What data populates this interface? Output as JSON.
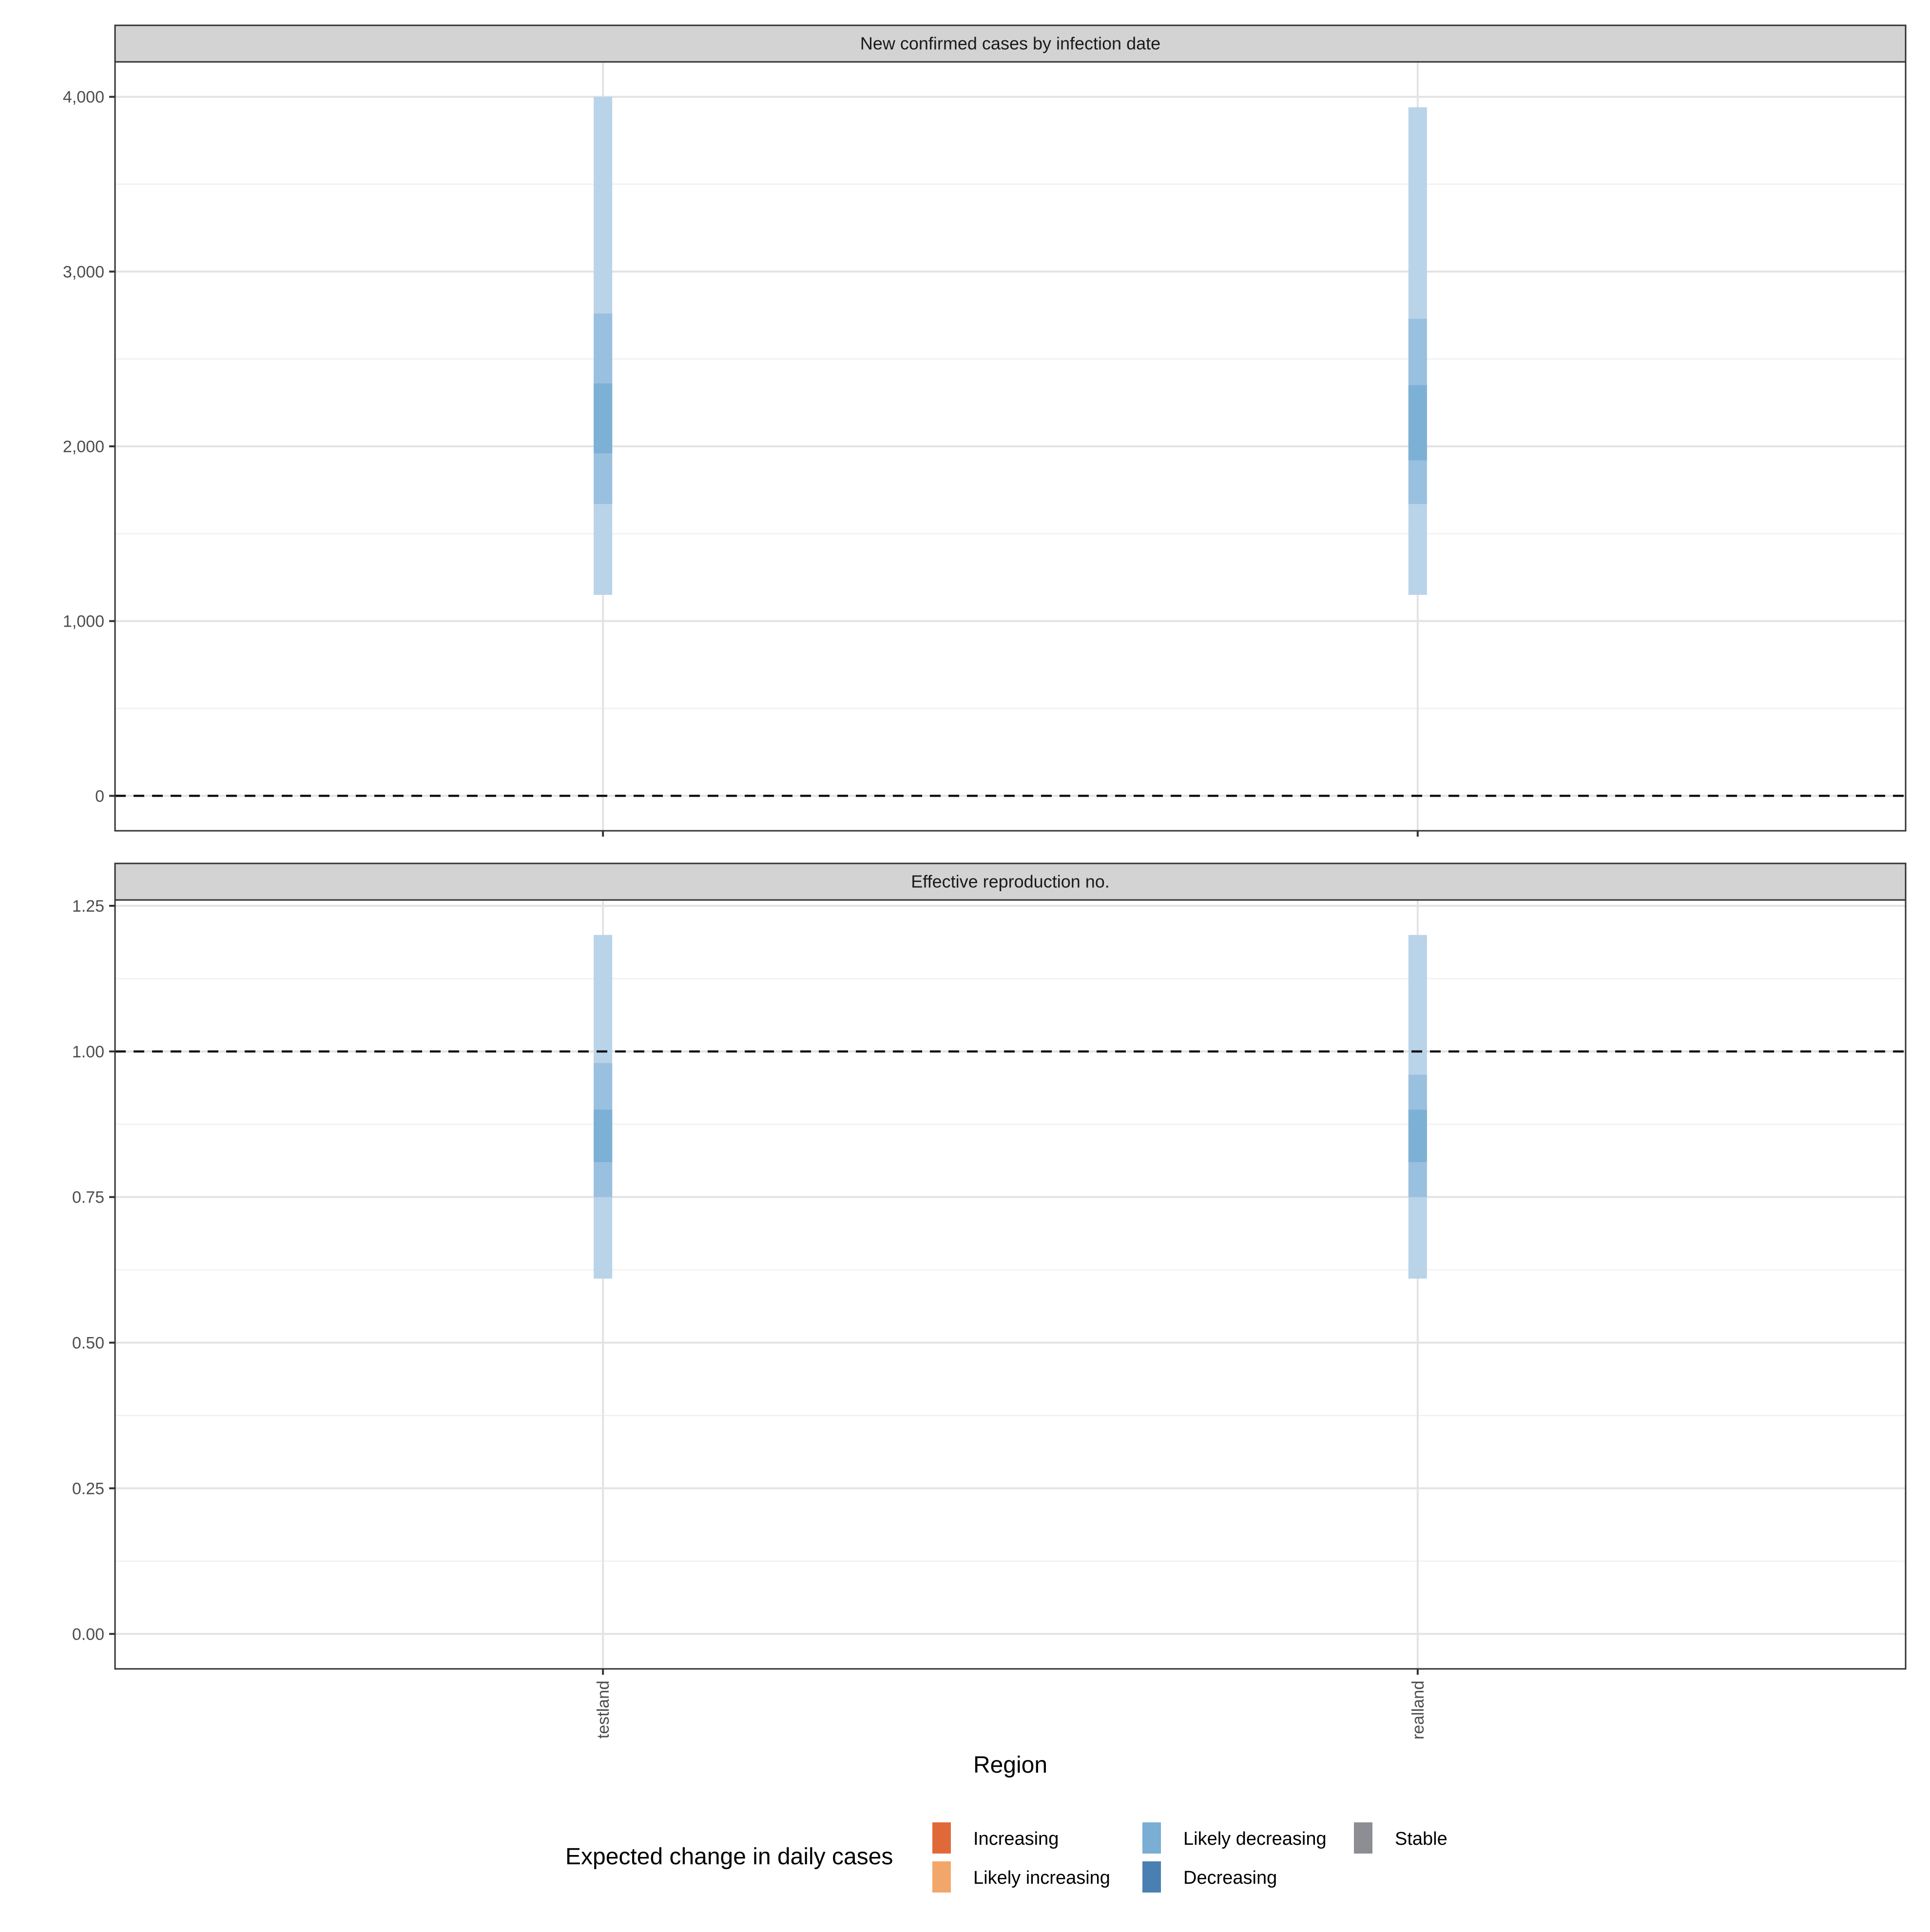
{
  "chart_data": {
    "type": "crossbar-interval",
    "x_axis": {
      "label": "Region",
      "categories": [
        "testland",
        "realland"
      ]
    },
    "panels": [
      {
        "strip_label": "New confirmed cases by infection date",
        "ylim": [
          -200,
          4200
        ],
        "y_ticks": [
          0,
          1000,
          2000,
          3000,
          4000
        ],
        "y_tick_labels": [
          "0",
          "1,000",
          "2,000",
          "3,000",
          "4,000"
        ],
        "reference_line": 0,
        "intervals": [
          {
            "region": "testland",
            "category": "Likely decreasing",
            "ci90": [
              1150,
              4000
            ],
            "ci50": [
              1670,
              2760
            ],
            "ci20": [
              1960,
              2360
            ]
          },
          {
            "region": "realland",
            "category": "Likely decreasing",
            "ci90": [
              1150,
              3940
            ],
            "ci50": [
              1670,
              2730
            ],
            "ci20": [
              1920,
              2350
            ]
          }
        ]
      },
      {
        "strip_label": "Effective reproduction no.",
        "ylim": [
          -0.06,
          1.26
        ],
        "y_ticks": [
          0,
          0.25,
          0.5,
          0.75,
          1.0,
          1.25
        ],
        "y_tick_labels": [
          "0.00",
          "0.25",
          "0.50",
          "0.75",
          "1.00",
          "1.25"
        ],
        "reference_line": 1.0,
        "intervals": [
          {
            "region": "testland",
            "category": "Likely decreasing",
            "ci90": [
              0.61,
              1.2
            ],
            "ci50": [
              0.75,
              0.98
            ],
            "ci20": [
              0.81,
              0.9
            ]
          },
          {
            "region": "realland",
            "category": "Likely decreasing",
            "ci90": [
              0.61,
              1.2
            ],
            "ci50": [
              0.75,
              0.96
            ],
            "ci20": [
              0.81,
              0.9
            ]
          }
        ]
      }
    ],
    "legend": {
      "title": "Expected change in daily cases",
      "position": "bottom",
      "items": [
        {
          "label": "Increasing",
          "color": "#e0693a"
        },
        {
          "label": "Likely increasing",
          "color": "#f3a66a"
        },
        {
          "label": "Likely decreasing",
          "color": "#7aaed4"
        },
        {
          "label": "Decreasing",
          "color": "#4a7fb2"
        },
        {
          "label": "Stable",
          "color": "#8c8e94"
        }
      ]
    },
    "interval_colors": {
      "ci90": "#b9d3e9",
      "ci50": "#93bcdd",
      "ci20": "#78add4"
    }
  }
}
